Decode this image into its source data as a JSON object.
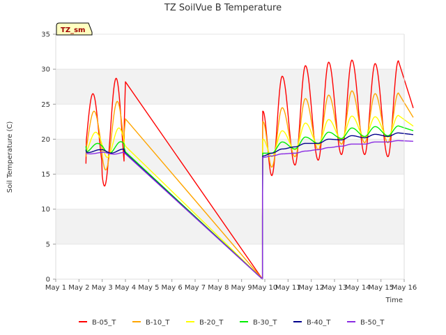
{
  "chart_data": {
    "type": "line",
    "title": "TZ SoilVue B Temperature",
    "xlabel": "Time",
    "ylabel": "Soil Temperature (C)",
    "site_tag": "TZ_sm",
    "xlim": [
      0,
      15
    ],
    "ylim": [
      0,
      35
    ],
    "x_ticks": [
      "May 1",
      "May 2",
      "May 3",
      "May 4",
      "May 5",
      "May 6",
      "May 7",
      "May 8",
      "May 9",
      "May 10",
      "May 11",
      "May 12",
      "May 13",
      "May 14",
      "May 15",
      "May 16"
    ],
    "y_ticks": [
      0,
      5,
      10,
      15,
      20,
      25,
      30,
      35
    ],
    "grid": "horizontal bands",
    "legend_position": "bottom",
    "series": [
      {
        "name": "B-05_T",
        "color": "#ff0000",
        "mean": 21.0,
        "amplitude": 5.5,
        "phase": 0.6,
        "start_lvl": 16.5,
        "tick": 28.2,
        "spike": 24.0,
        "peaks": [
          29.0,
          30.5,
          31.0,
          31.3,
          30.8,
          31.2
        ],
        "troughs": [
          14.8,
          16.3,
          17.0,
          17.8,
          17.8,
          17.5
        ]
      },
      {
        "name": "B-10_T",
        "color": "#ffa500",
        "mean": 20.5,
        "amplitude": 3.5,
        "phase": 0.65,
        "start_lvl": 17.5,
        "tick": 22.9,
        "spike": 22.5,
        "peaks": [
          24.5,
          25.8,
          26.3,
          26.9,
          26.5,
          26.6
        ],
        "troughs": [
          16.0,
          17.5,
          18.5,
          19.3,
          19.5,
          19.5
        ]
      },
      {
        "name": "B-20_T",
        "color": "#ffff00",
        "mean": 19.5,
        "amplitude": 1.5,
        "phase": 0.72,
        "start_lvl": 18.0,
        "tick": 19.0,
        "spike": 20.0,
        "peaks": [
          21.2,
          22.3,
          22.8,
          23.3,
          23.2,
          23.4
        ],
        "troughs": [
          17.5,
          18.5,
          19.2,
          20.0,
          20.2,
          20.3
        ]
      },
      {
        "name": "B-30_T",
        "color": "#00ee00",
        "mean": 18.8,
        "amplitude": 0.6,
        "phase": 0.8,
        "start_lvl": 19.0,
        "tick": 18.2,
        "spike": 18.0,
        "peaks": [
          19.6,
          20.3,
          21.0,
          21.6,
          21.8,
          21.9
        ],
        "troughs": [
          18.0,
          18.6,
          19.4,
          20.1,
          20.4,
          20.5
        ]
      },
      {
        "name": "B-40_T",
        "color": "#00008b",
        "mean": 18.3,
        "amplitude": 0.2,
        "phase": 0.9,
        "start_lvl": 18.5,
        "tick": 18.0,
        "spike": 17.6,
        "peaks": [
          18.6,
          19.4,
          20.0,
          20.5,
          20.7,
          20.9
        ],
        "troughs": [
          18.0,
          18.9,
          19.4,
          19.9,
          20.2,
          20.4
        ]
      },
      {
        "name": "B-50_T",
        "color": "#8a2be2",
        "mean": 18.0,
        "amplitude": 0.1,
        "phase": 1.0,
        "start_lvl": 18.0,
        "tick": 17.9,
        "spike": 17.4,
        "peaks": [
          17.9,
          18.3,
          18.8,
          19.3,
          19.6,
          19.8
        ],
        "troughs": [
          17.6,
          18.0,
          18.5,
          19.0,
          19.3,
          19.6
        ]
      }
    ]
  }
}
